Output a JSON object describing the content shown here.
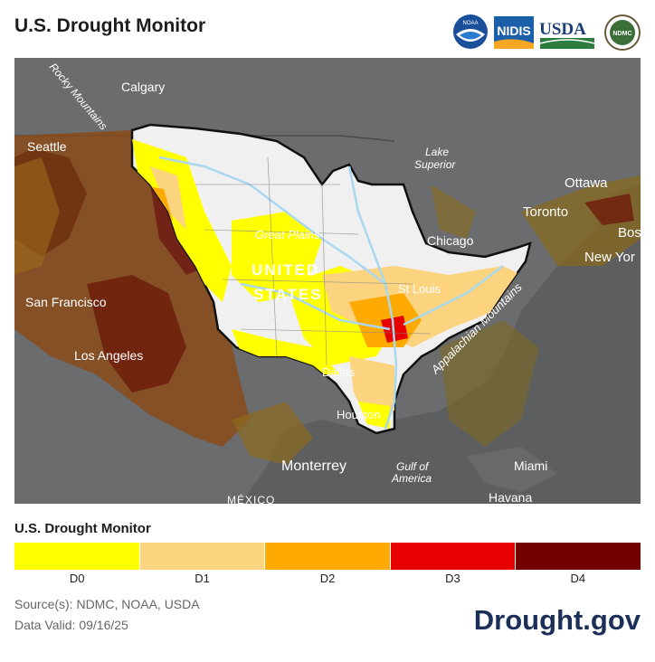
{
  "header": {
    "title": "U.S. Drought Monitor"
  },
  "logos": {
    "noaa": "NOAA",
    "nidis": "NIDIS",
    "usda": "USDA",
    "ndmc": "NDMC"
  },
  "map": {
    "labels": {
      "rocky_mountains": "Rocky Mountains",
      "calgary": "Calgary",
      "seattle": "Seattle",
      "lake_superior_1": "Lake",
      "lake_superior_2": "Superior",
      "ottawa": "Ottawa",
      "toronto": "Toronto",
      "boston": "Bos",
      "new_york": "New Yor",
      "chicago": "Chicago",
      "great_plains": "Great Plains",
      "united": "UNITED",
      "states": "STATES",
      "st_louis": "St Louis",
      "appalachian": "Appalachian Mountains",
      "san_francisco": "San Francisco",
      "los_angeles": "Los Angeles",
      "dallas": "Dallas",
      "houston": "Houston",
      "monterrey": "Monterrey",
      "gulf_1": "Gulf of",
      "gulf_2": "America",
      "miami": "Miami",
      "havana": "Havana",
      "mexico": "MÉXICO"
    }
  },
  "legend": {
    "title": "U.S. Drought Monitor",
    "categories": [
      {
        "label": "D0",
        "color": "#ffff00"
      },
      {
        "label": "D1",
        "color": "#fcd37f"
      },
      {
        "label": "D2",
        "color": "#ffaa00"
      },
      {
        "label": "D3",
        "color": "#e60000"
      },
      {
        "label": "D4",
        "color": "#730000"
      }
    ]
  },
  "footer": {
    "source": "Source(s): NDMC, NOAA, USDA",
    "valid": "Data Valid: 09/16/25",
    "brand": "Drought.gov"
  }
}
